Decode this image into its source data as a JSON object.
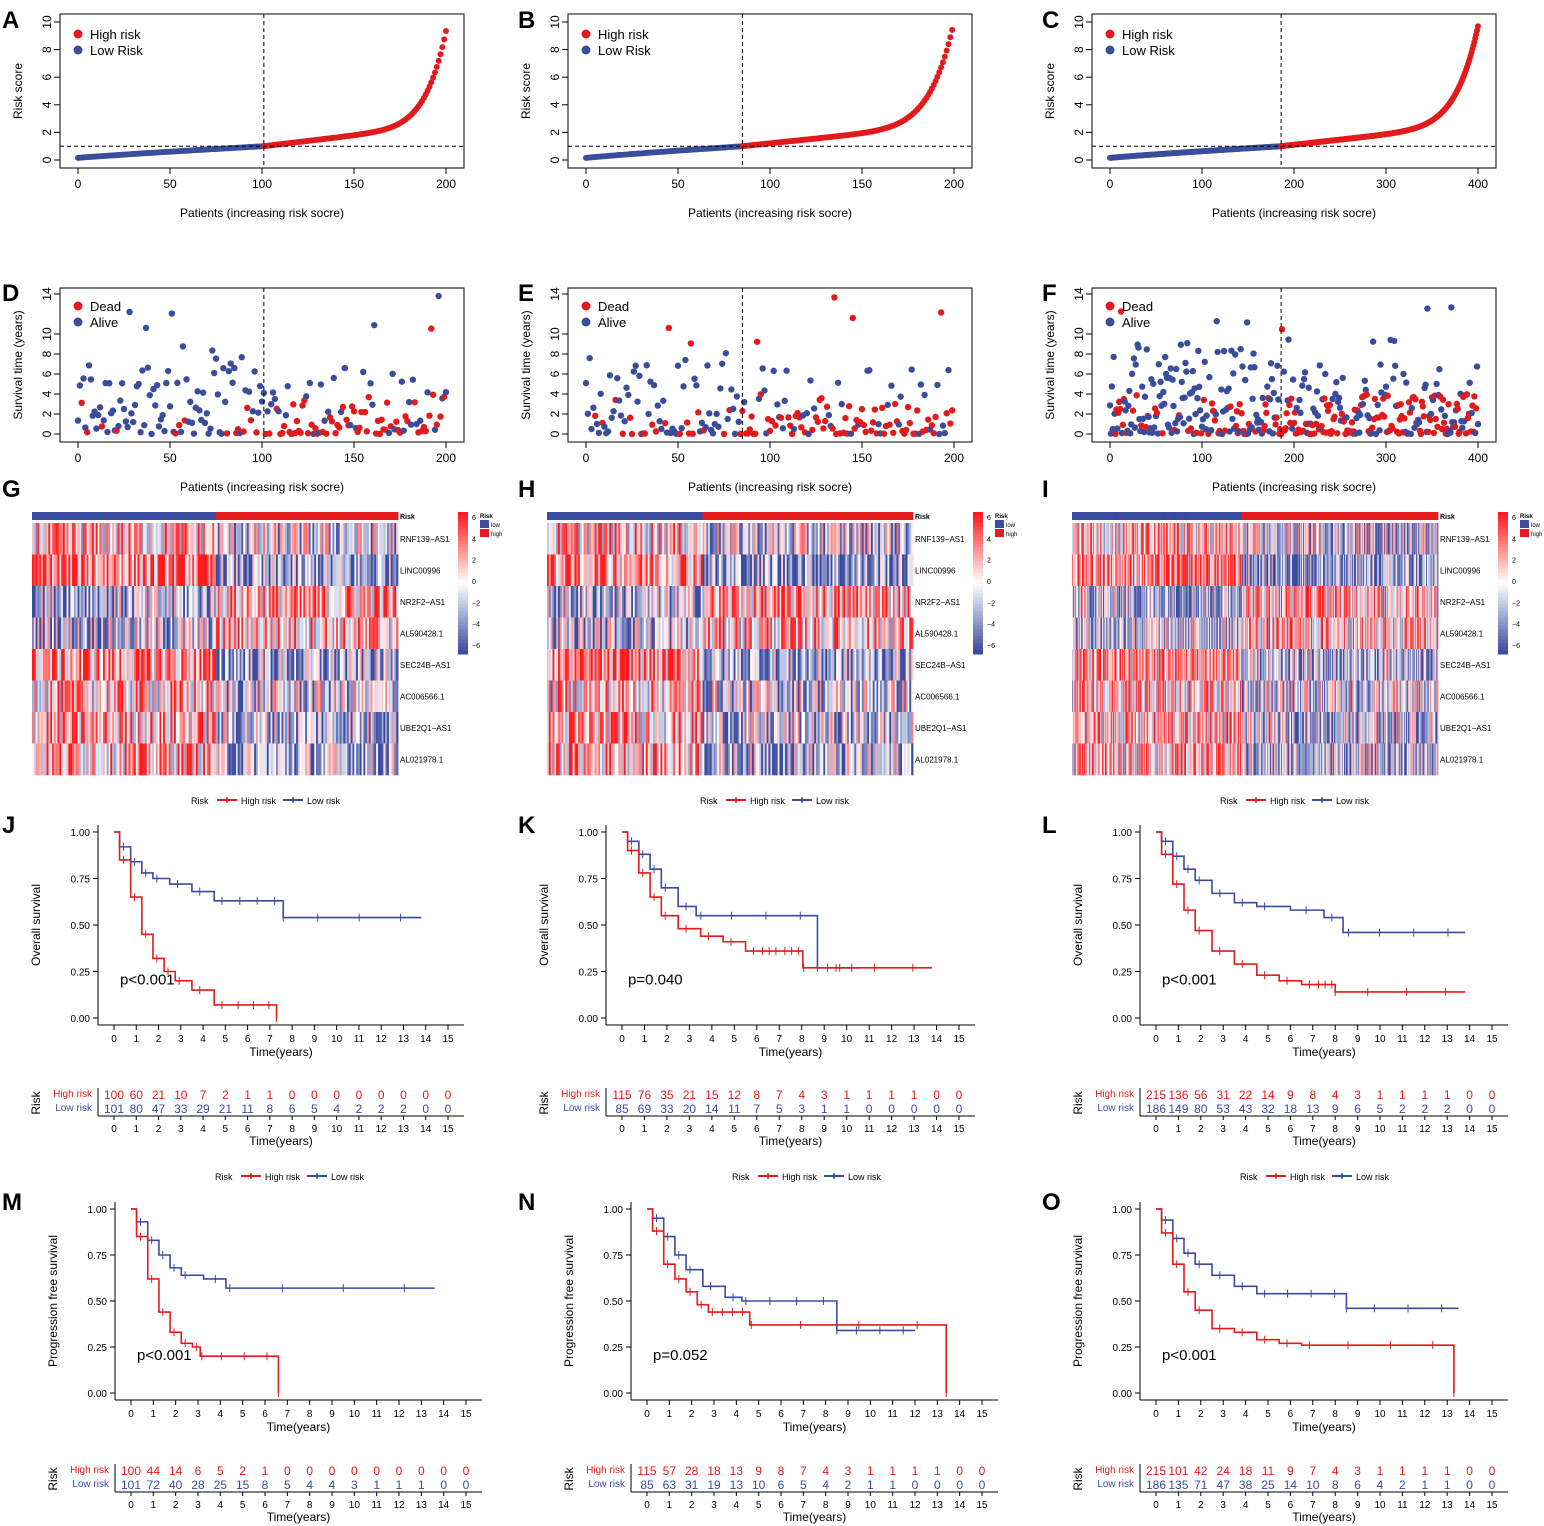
{
  "colors": {
    "high": "#e41a1c",
    "low": "#3b4ba0",
    "pt_high": "#e31a1c",
    "pt_low": "#3a4d9c",
    "axis": "#000000",
    "ref_line": "#555555"
  },
  "risk_axis": {
    "xlabel": "Patients (increasing risk socre)",
    "ylabel": "Risk score",
    "legend": [
      "High risk",
      "Low Risk"
    ]
  },
  "surv_axis": {
    "xlabel": "Patients (increasing risk socre)",
    "ylabel": "Survival time (years)",
    "legend": [
      "Dead",
      "Alive"
    ]
  },
  "heatmap": {
    "genes": [
      "RNF139−AS1",
      "LINC00996",
      "NR2F2−AS1",
      "AL590428.1",
      "SEC24B−AS1",
      "AC006566.1",
      "UBE2Q1−AS1",
      "AL021978.1"
    ],
    "annotation_label": "Risk",
    "legend_title": "Risk",
    "legend_levels": [
      "low",
      "high"
    ],
    "scale_ticks": [
      "6",
      "4",
      "2",
      "0",
      "−2",
      "−4",
      "−6"
    ]
  },
  "km_legend": {
    "title": "Risk",
    "high": "High risk",
    "low": "Low risk"
  },
  "km_axis": {
    "xlabel": "Time(years)",
    "os_ylabel": "Overall survival",
    "pfs_ylabel": "Progression free survival",
    "table_ylabel": "Risk",
    "row_high": "High risk",
    "row_low": "Low risk",
    "xticks": [
      "0",
      "1",
      "2",
      "3",
      "4",
      "5",
      "6",
      "7",
      "8",
      "9",
      "10",
      "11",
      "12",
      "13",
      "14",
      "15"
    ],
    "yticks": [
      "0.00",
      "0.25",
      "0.50",
      "0.75",
      "1.00"
    ]
  },
  "chart_data": [
    {
      "panel": "A",
      "type": "scatter",
      "title": "",
      "n": 201,
      "cutoff_index": 101,
      "cutoff_score": 1.0,
      "max_score": 10,
      "xlim": [
        0,
        200
      ],
      "ylim": [
        0,
        10
      ],
      "xticks": [
        0,
        50,
        100,
        150,
        200
      ],
      "yticks": [
        0,
        2,
        4,
        6,
        8,
        10
      ]
    },
    {
      "panel": "B",
      "type": "scatter",
      "n": 200,
      "cutoff_index": 85,
      "cutoff_score": 1.0,
      "max_score": 10,
      "xlim": [
        0,
        200
      ],
      "ylim": [
        0,
        10
      ],
      "xticks": [
        0,
        50,
        100,
        150,
        200
      ],
      "yticks": [
        0,
        2,
        4,
        6,
        8,
        10
      ]
    },
    {
      "panel": "C",
      "type": "scatter",
      "n": 401,
      "cutoff_index": 186,
      "cutoff_score": 1.0,
      "max_score": 10,
      "xlim": [
        0,
        400
      ],
      "ylim": [
        0,
        10
      ],
      "xticks": [
        0,
        100,
        200,
        300,
        400
      ],
      "yticks": [
        0,
        2,
        4,
        6,
        8,
        10
      ]
    },
    {
      "panel": "D",
      "type": "scatter",
      "n": 201,
      "cutoff_index": 101,
      "xlim": [
        0,
        200
      ],
      "ylim": [
        0,
        14
      ],
      "xticks": [
        0,
        50,
        100,
        150,
        200
      ],
      "yticks": [
        0,
        2,
        4,
        6,
        8,
        10,
        14
      ]
    },
    {
      "panel": "E",
      "type": "scatter",
      "n": 200,
      "cutoff_index": 85,
      "xlim": [
        0,
        200
      ],
      "ylim": [
        0,
        14
      ],
      "xticks": [
        0,
        50,
        100,
        150,
        200
      ],
      "yticks": [
        0,
        2,
        4,
        6,
        8,
        10,
        14
      ]
    },
    {
      "panel": "F",
      "type": "scatter",
      "n": 401,
      "cutoff_index": 186,
      "xlim": [
        0,
        400
      ],
      "ylim": [
        0,
        14
      ],
      "xticks": [
        0,
        100,
        200,
        300,
        400
      ],
      "yticks": [
        0,
        2,
        4,
        6,
        8,
        10,
        14
      ]
    },
    {
      "panel": "G",
      "type": "heatmap",
      "n_low": 101,
      "n_high": 100,
      "value_range": [
        -6,
        6
      ]
    },
    {
      "panel": "H",
      "type": "heatmap",
      "n_low": 85,
      "n_high": 115,
      "value_range": [
        -6,
        6
      ]
    },
    {
      "panel": "I",
      "type": "heatmap",
      "n_low": 186,
      "n_high": 215,
      "value_range": [
        -6,
        6
      ]
    },
    {
      "panel": "J",
      "type": "line",
      "ylabel": "Overall survival",
      "pvalue": "p<0.001",
      "high": [
        [
          0,
          1
        ],
        [
          0.5,
          0.85
        ],
        [
          1,
          0.65
        ],
        [
          1.5,
          0.45
        ],
        [
          2,
          0.32
        ],
        [
          2.5,
          0.25
        ],
        [
          3,
          0.2
        ],
        [
          4,
          0.15
        ],
        [
          5,
          0.07
        ],
        [
          7.3,
          0.07
        ],
        [
          7.3,
          0.0
        ]
      ],
      "low": [
        [
          0,
          1
        ],
        [
          0.5,
          0.92
        ],
        [
          1,
          0.84
        ],
        [
          1.5,
          0.78
        ],
        [
          2,
          0.75
        ],
        [
          3,
          0.72
        ],
        [
          4,
          0.68
        ],
        [
          5,
          0.63
        ],
        [
          7.6,
          0.63
        ],
        [
          7.6,
          0.54
        ],
        [
          13.8,
          0.54
        ]
      ],
      "risk_table": {
        "high": [
          "100",
          "60",
          "21",
          "10",
          "7",
          "2",
          "1",
          "1",
          "0",
          "0",
          "0",
          "0",
          "0",
          "0",
          "0",
          "0"
        ],
        "low": [
          "101",
          "80",
          "47",
          "33",
          "29",
          "21",
          "11",
          "8",
          "6",
          "5",
          "4",
          "2",
          "2",
          "2",
          "0",
          "0"
        ]
      }
    },
    {
      "panel": "K",
      "type": "line",
      "ylabel": "Overall survival",
      "pvalue": "p=0.040",
      "high": [
        [
          0,
          1
        ],
        [
          0.5,
          0.9
        ],
        [
          1,
          0.78
        ],
        [
          1.5,
          0.65
        ],
        [
          2,
          0.55
        ],
        [
          3,
          0.48
        ],
        [
          4,
          0.44
        ],
        [
          5,
          0.41
        ],
        [
          6,
          0.36
        ],
        [
          7,
          0.36
        ],
        [
          8,
          0.36
        ],
        [
          8.1,
          0.27
        ],
        [
          13.8,
          0.27
        ]
      ],
      "low": [
        [
          0,
          1
        ],
        [
          0.5,
          0.95
        ],
        [
          1,
          0.88
        ],
        [
          1.5,
          0.8
        ],
        [
          2,
          0.7
        ],
        [
          3,
          0.6
        ],
        [
          3.6,
          0.55
        ],
        [
          8.7,
          0.55
        ],
        [
          8.7,
          0.27
        ],
        [
          10.5,
          0.27
        ]
      ],
      "risk_table": {
        "high": [
          "115",
          "76",
          "35",
          "21",
          "15",
          "12",
          "8",
          "7",
          "4",
          "3",
          "1",
          "1",
          "1",
          "1",
          "0",
          "0"
        ],
        "low": [
          "85",
          "69",
          "33",
          "20",
          "14",
          "11",
          "7",
          "5",
          "3",
          "1",
          "1",
          "0",
          "0",
          "0",
          "0",
          "0"
        ]
      }
    },
    {
      "panel": "L",
      "type": "line",
      "ylabel": "Overall survival",
      "pvalue": "p<0.001",
      "high": [
        [
          0,
          1
        ],
        [
          0.5,
          0.88
        ],
        [
          1,
          0.72
        ],
        [
          1.5,
          0.58
        ],
        [
          2,
          0.47
        ],
        [
          3,
          0.36
        ],
        [
          4,
          0.29
        ],
        [
          5,
          0.23
        ],
        [
          6,
          0.2
        ],
        [
          7,
          0.18
        ],
        [
          8,
          0.18
        ],
        [
          8,
          0.14
        ],
        [
          13.8,
          0.14
        ]
      ],
      "low": [
        [
          0,
          1
        ],
        [
          0.5,
          0.95
        ],
        [
          1,
          0.87
        ],
        [
          1.5,
          0.8
        ],
        [
          2,
          0.74
        ],
        [
          3,
          0.67
        ],
        [
          4,
          0.62
        ],
        [
          5,
          0.6
        ],
        [
          7,
          0.58
        ],
        [
          8,
          0.54
        ],
        [
          8.7,
          0.46
        ],
        [
          13.8,
          0.46
        ]
      ],
      "risk_table": {
        "high": [
          "215",
          "136",
          "56",
          "31",
          "22",
          "14",
          "9",
          "8",
          "4",
          "3",
          "1",
          "1",
          "1",
          "1",
          "0",
          "0"
        ],
        "low": [
          "186",
          "149",
          "80",
          "53",
          "43",
          "32",
          "18",
          "13",
          "9",
          "6",
          "5",
          "2",
          "2",
          "2",
          "0",
          "0"
        ]
      }
    },
    {
      "panel": "M",
      "type": "line",
      "ylabel": "Progression free survival",
      "pvalue": "p<0.001",
      "high": [
        [
          0,
          1
        ],
        [
          0.5,
          0.85
        ],
        [
          1,
          0.62
        ],
        [
          1.5,
          0.44
        ],
        [
          2,
          0.33
        ],
        [
          2.5,
          0.27
        ],
        [
          3,
          0.25
        ],
        [
          3.2,
          0.2
        ],
        [
          6.6,
          0.2
        ],
        [
          6.6,
          0.0
        ]
      ],
      "low": [
        [
          0,
          1
        ],
        [
          0.5,
          0.93
        ],
        [
          1,
          0.83
        ],
        [
          1.5,
          0.75
        ],
        [
          2,
          0.68
        ],
        [
          2.5,
          0.64
        ],
        [
          4,
          0.62
        ],
        [
          4.5,
          0.57
        ],
        [
          13.6,
          0.57
        ]
      ],
      "risk_table": {
        "high": [
          "100",
          "44",
          "14",
          "6",
          "5",
          "2",
          "1",
          "0",
          "0",
          "0",
          "0",
          "0",
          "0",
          "0",
          "0",
          "0"
        ],
        "low": [
          "101",
          "72",
          "40",
          "28",
          "25",
          "15",
          "8",
          "5",
          "4",
          "4",
          "3",
          "1",
          "1",
          "1",
          "0",
          "0"
        ]
      }
    },
    {
      "panel": "N",
      "type": "line",
      "ylabel": "Progression free survival",
      "pvalue": "p=0.052",
      "high": [
        [
          0,
          1
        ],
        [
          0.5,
          0.88
        ],
        [
          1,
          0.7
        ],
        [
          1.5,
          0.62
        ],
        [
          2,
          0.55
        ],
        [
          2.5,
          0.48
        ],
        [
          3,
          0.44
        ],
        [
          4.5,
          0.44
        ],
        [
          4.7,
          0.37
        ],
        [
          13.4,
          0.37
        ],
        [
          13.4,
          0.0
        ]
      ],
      "low": [
        [
          0,
          1
        ],
        [
          0.5,
          0.95
        ],
        [
          1,
          0.85
        ],
        [
          1.5,
          0.75
        ],
        [
          2,
          0.67
        ],
        [
          3,
          0.58
        ],
        [
          4,
          0.52
        ],
        [
          4.5,
          0.5
        ],
        [
          8.5,
          0.5
        ],
        [
          8.5,
          0.34
        ],
        [
          12,
          0.34
        ]
      ],
      "risk_table": {
        "high": [
          "115",
          "57",
          "28",
          "18",
          "13",
          "9",
          "8",
          "7",
          "4",
          "3",
          "1",
          "1",
          "1",
          "1",
          "0",
          "0"
        ],
        "low": [
          "85",
          "63",
          "31",
          "19",
          "13",
          "10",
          "6",
          "5",
          "4",
          "2",
          "1",
          "1",
          "0",
          "0",
          "0",
          "0"
        ]
      }
    },
    {
      "panel": "O",
      "type": "line",
      "ylabel": "Progression free survival",
      "pvalue": "p<0.001",
      "high": [
        [
          0,
          1
        ],
        [
          0.5,
          0.87
        ],
        [
          1,
          0.7
        ],
        [
          1.5,
          0.55
        ],
        [
          2,
          0.45
        ],
        [
          3,
          0.35
        ],
        [
          4,
          0.33
        ],
        [
          5,
          0.29
        ],
        [
          6,
          0.27
        ],
        [
          7,
          0.26
        ],
        [
          13.3,
          0.26
        ],
        [
          13.3,
          0.0
        ]
      ],
      "low": [
        [
          0,
          1
        ],
        [
          0.5,
          0.94
        ],
        [
          1,
          0.84
        ],
        [
          1.5,
          0.76
        ],
        [
          2,
          0.7
        ],
        [
          3,
          0.64
        ],
        [
          4,
          0.58
        ],
        [
          5,
          0.54
        ],
        [
          8.5,
          0.54
        ],
        [
          8.5,
          0.46
        ],
        [
          13.5,
          0.46
        ]
      ],
      "risk_table": {
        "high": [
          "215",
          "101",
          "42",
          "24",
          "18",
          "11",
          "9",
          "7",
          "4",
          "3",
          "1",
          "1",
          "1",
          "1",
          "0",
          "0"
        ],
        "low": [
          "186",
          "135",
          "71",
          "47",
          "38",
          "25",
          "14",
          "10",
          "8",
          "6",
          "4",
          "2",
          "1",
          "1",
          "0",
          "0"
        ]
      }
    }
  ]
}
